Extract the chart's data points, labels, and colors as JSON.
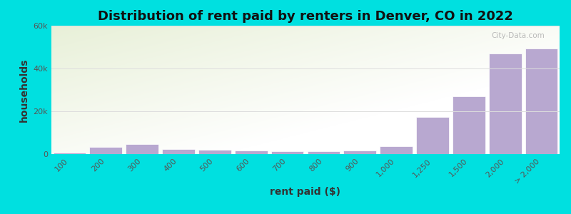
{
  "title": "Distribution of rent paid by renters in Denver, CO in 2022",
  "xlabel": "rent paid ($)",
  "ylabel": "households",
  "background_color": "#00e0e0",
  "plot_bg_top_left": "#e8f0d8",
  "plot_bg_bottom_right": "#ffffff",
  "bar_color": "#b8a8d0",
  "bar_edge_color": "#ffffff",
  "categories": [
    "100",
    "200",
    "300",
    "400",
    "500",
    "600",
    "700",
    "800",
    "900",
    "1,000",
    "1,250",
    "1,500",
    "2,000",
    "> 2,000"
  ],
  "values": [
    700,
    3200,
    4800,
    2500,
    2000,
    1800,
    1500,
    1500,
    1800,
    3800,
    17500,
    27000,
    47000,
    49500
  ],
  "ylim": [
    0,
    60000
  ],
  "yticks": [
    0,
    20000,
    40000,
    60000
  ],
  "ytick_labels": [
    "0",
    "20k",
    "40k",
    "60k"
  ],
  "title_fontsize": 13,
  "axis_label_fontsize": 10,
  "tick_fontsize": 8,
  "watermark": "City-Data.com"
}
